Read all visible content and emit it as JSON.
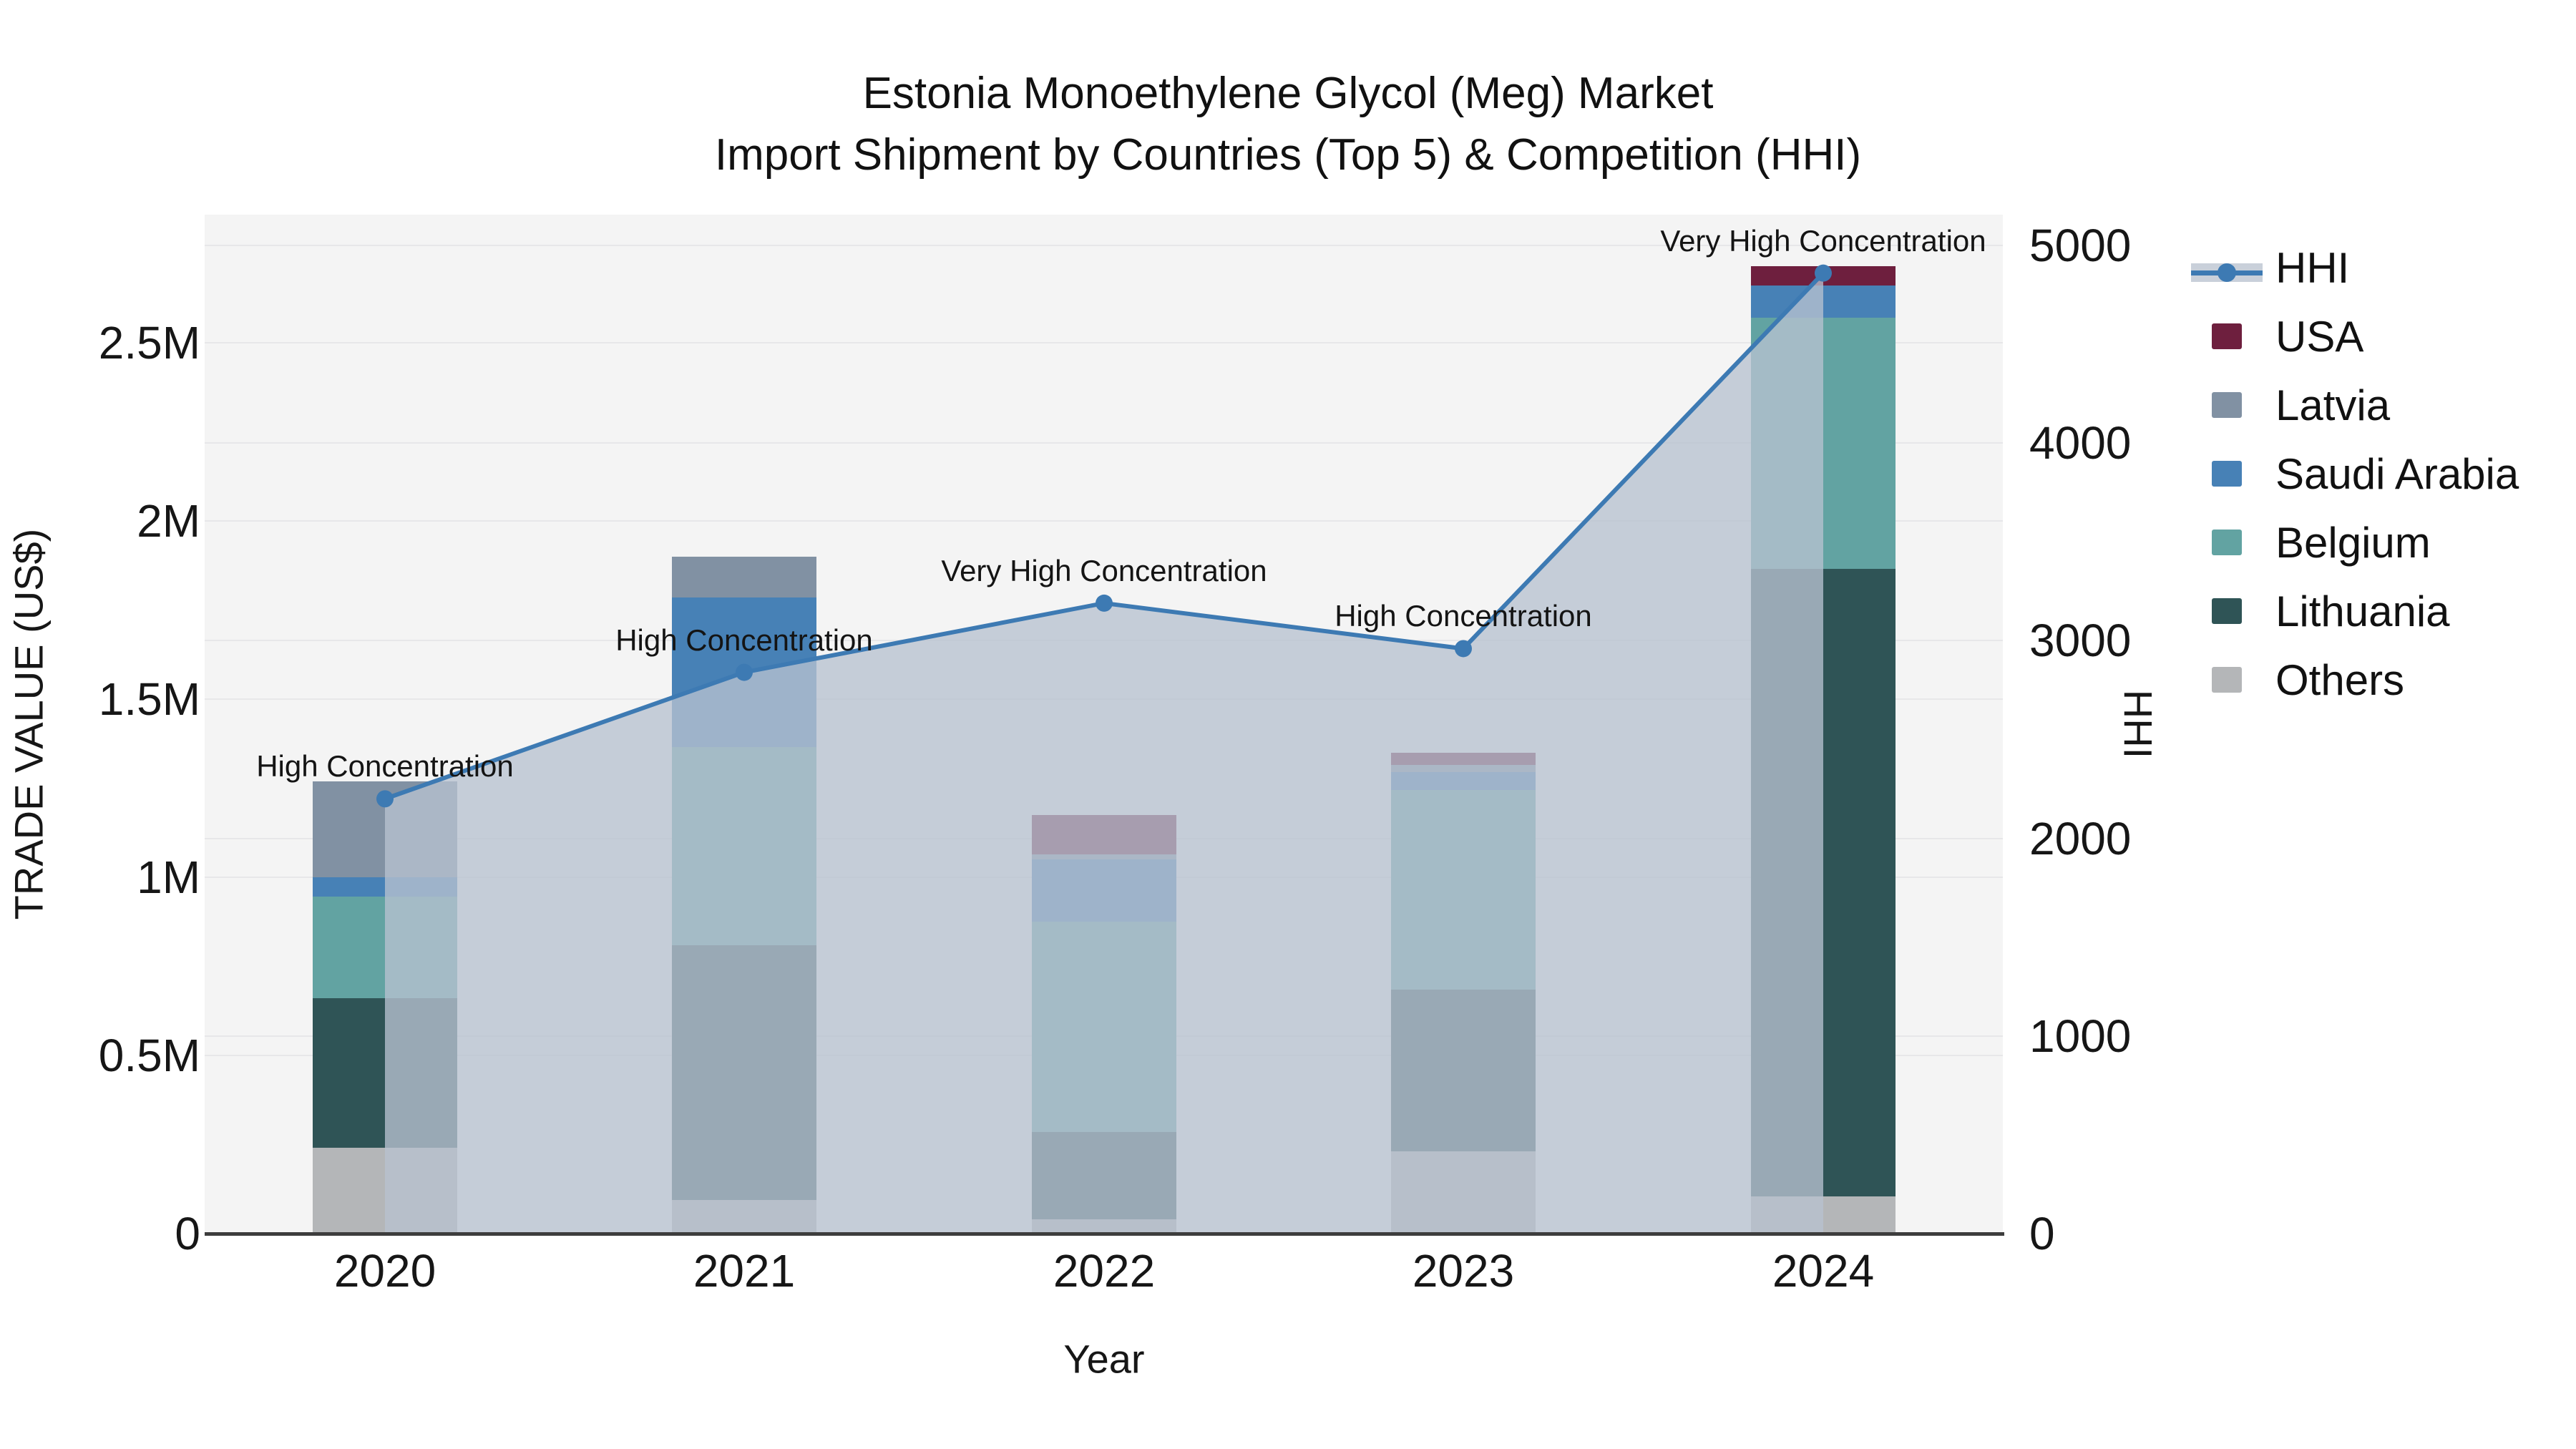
{
  "title": {
    "line1": "Estonia Monoethylene Glycol (Meg) Market",
    "line2": "Import Shipment by Countries (Top 5) & Competition (HHI)"
  },
  "axes": {
    "x": {
      "title": "Year",
      "ticks": [
        "2020",
        "2021",
        "2022",
        "2023",
        "2024"
      ]
    },
    "y_left": {
      "title": "TRADE VALUE (US$)",
      "ticks": [
        "0",
        "0.5M",
        "1M",
        "1.5M",
        "2M",
        "2.5M"
      ],
      "tick_values_musd": [
        0,
        0.5,
        1,
        1.5,
        2,
        2.5
      ]
    },
    "y_right": {
      "title": "HHI",
      "ticks": [
        "0",
        "1000",
        "2000",
        "3000",
        "4000",
        "5000"
      ],
      "tick_values": [
        0,
        1000,
        2000,
        3000,
        4000,
        5000
      ],
      "max": 5000
    }
  },
  "legend": {
    "items": [
      {
        "label": "HHI",
        "type": "line",
        "color": "#3d7ab3"
      },
      {
        "label": "USA",
        "type": "swatch",
        "color": "#6e1f3e"
      },
      {
        "label": "Latvia",
        "type": "swatch",
        "color": "#8191a3"
      },
      {
        "label": "Saudi Arabia",
        "type": "swatch",
        "color": "#4781b6"
      },
      {
        "label": "Belgium",
        "type": "swatch",
        "color": "#62a3a2"
      },
      {
        "label": "Lithuania",
        "type": "swatch",
        "color": "#2f5456"
      },
      {
        "label": "Others",
        "type": "swatch",
        "color": "#b4b6b8"
      }
    ]
  },
  "colors": {
    "hhi_line": "#3d7ab3",
    "hhi_area": "#b7c1cf",
    "hhi_legend_band": "#c9d0da",
    "plot_background": "#f4f4f4",
    "gridline": "#e7e7e9",
    "axis_line": "#3d3d3d"
  },
  "chart_data": {
    "type": "bar",
    "subtype": "stacked-bar-with-line-overlay",
    "title": "Estonia Monoethylene Glycol (Meg) Market — Import Shipment by Countries (Top 5) & Competition (HHI)",
    "xlabel": "Year",
    "ylabel_left": "TRADE VALUE (US$)",
    "ylabel_right": "HHI",
    "categories": [
      "2020",
      "2021",
      "2022",
      "2023",
      "2024"
    ],
    "values_unit": "million US$",
    "ylim_left_musd": [
      0,
      2.85
    ],
    "ylim_right_hhi": [
      0,
      5000
    ],
    "grid": true,
    "legend_position": "right",
    "series": [
      {
        "name": "Others",
        "color": "#b4b6b8",
        "values": [
          0.24,
          0.095,
          0.04,
          0.23,
          0.105
        ]
      },
      {
        "name": "Lithuania",
        "color": "#2f5456",
        "values": [
          0.42,
          0.715,
          0.245,
          0.455,
          1.76
        ]
      },
      {
        "name": "Belgium",
        "color": "#62a3a2",
        "values": [
          0.285,
          0.555,
          0.59,
          0.56,
          0.705
        ]
      },
      {
        "name": "Saudi Arabia",
        "color": "#4781b6",
        "values": [
          0.055,
          0.42,
          0.175,
          0.05,
          0.09
        ]
      },
      {
        "name": "Latvia",
        "color": "#8191a3",
        "values": [
          0.27,
          0.115,
          0.015,
          0.02,
          0
        ]
      },
      {
        "name": "USA",
        "color": "#6e1f3e",
        "values": [
          0,
          0,
          0.11,
          0.035,
          0.055
        ]
      }
    ],
    "stack_totals_musd": [
      1.27,
      1.9,
      1.175,
      1.35,
      2.715
    ],
    "line_series": {
      "name": "HHI",
      "axis": "right",
      "color": "#3d7ab3",
      "values": [
        2200,
        2840,
        3190,
        2960,
        4860
      ],
      "area_fill": true
    },
    "annotations": [
      "High Concentration",
      "High Concentration",
      "Very High Concentration",
      "High Concentration",
      "Very High Concentration"
    ]
  }
}
